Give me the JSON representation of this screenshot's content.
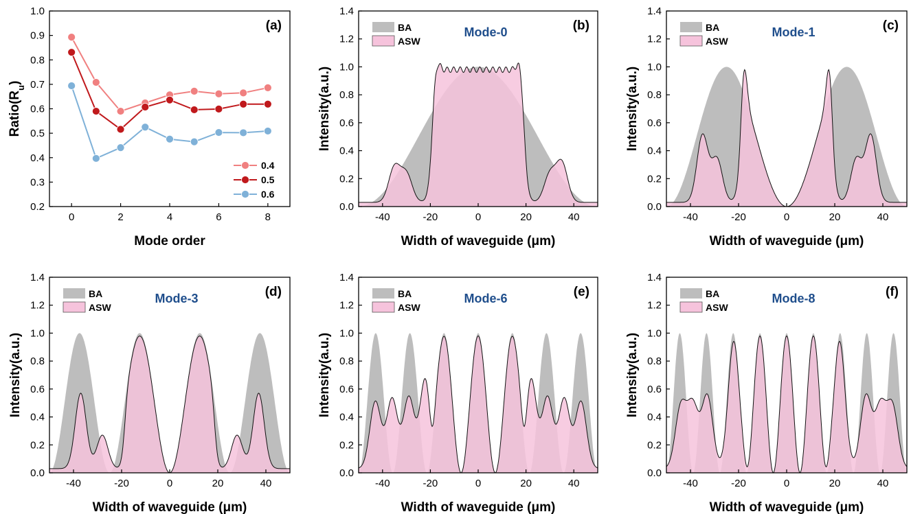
{
  "chart_data": [
    {
      "type": "line",
      "panel_label": "(a)",
      "xlabel": "Mode order",
      "ylabel": "Ratio(R",
      "ylabel_sub": "u",
      "ylabel_close": ")",
      "xlim": [
        -0.9,
        8.9
      ],
      "ylim": [
        0.2,
        1.0
      ],
      "xticks": [
        0,
        2,
        4,
        6,
        8
      ],
      "yticks": [
        0.2,
        0.3,
        0.4,
        0.5,
        0.6,
        0.7,
        0.8,
        0.9,
        1.0
      ],
      "ytick_labels": [
        "0.2",
        "0.3",
        "0.4",
        "0.5",
        "0.6",
        "0.7",
        "0.8",
        "0.9",
        "1.0"
      ],
      "x": [
        0,
        1,
        2,
        3,
        4,
        5,
        6,
        7,
        8
      ],
      "legend_position": "bottom-right",
      "series": [
        {
          "name": "0.4",
          "color": "#f08080",
          "values": [
            0.893,
            0.708,
            0.59,
            0.624,
            0.657,
            0.672,
            0.661,
            0.665,
            0.686
          ]
        },
        {
          "name": "0.5",
          "color": "#c0191c",
          "values": [
            0.831,
            0.59,
            0.516,
            0.607,
            0.636,
            0.596,
            0.599,
            0.619,
            0.619
          ]
        },
        {
          "name": "0.6",
          "color": "#7fb1d8",
          "values": [
            0.694,
            0.397,
            0.441,
            0.525,
            0.476,
            0.465,
            0.503,
            0.502,
            0.509
          ]
        }
      ]
    },
    {
      "type": "area",
      "panel_label": "(b)",
      "mode_label": "Mode-0",
      "mode_order": 0,
      "xlabel": "Width of waveguide (μm)",
      "ylabel": "Intensity(a.u.)",
      "xlim": [
        -50,
        50
      ],
      "ylim": [
        0,
        1.4
      ],
      "xticks": [
        -40,
        -20,
        0,
        20,
        40
      ],
      "yticks": [
        "0.0",
        "0.2",
        "0.4",
        "0.6",
        "0.8",
        "1.0",
        "1.2",
        "1.4"
      ],
      "series": [
        {
          "name": "BA",
          "color": "#bdbdbd"
        },
        {
          "name": "ASW",
          "color": "#f6c3dc"
        }
      ],
      "core_half_width": 19,
      "edge_peak": 1.05,
      "center_level": 0.98,
      "outer_peaks": [
        [
          -35,
          0.25
        ],
        [
          -30,
          0.2
        ],
        [
          35,
          0.28
        ],
        [
          30,
          0.2
        ]
      ]
    },
    {
      "type": "area",
      "panel_label": "(c)",
      "mode_label": "Mode-1",
      "mode_order": 1,
      "xlabel": "Width of waveguide (μm)",
      "ylabel": "Intensity(a.u.)",
      "xlim": [
        -50,
        50
      ],
      "ylim": [
        0,
        1.4
      ],
      "xticks": [
        -40,
        -20,
        0,
        20,
        40
      ],
      "yticks": [
        "0.0",
        "0.2",
        "0.4",
        "0.6",
        "0.8",
        "1.0",
        "1.2",
        "1.4"
      ],
      "series": [
        {
          "name": "BA",
          "color": "#bdbdbd"
        },
        {
          "name": "ASW",
          "color": "#f6c3dc"
        }
      ],
      "core_half_width": 19,
      "edge_peak": 1.27,
      "outer_peaks": [
        [
          -35,
          0.48
        ],
        [
          -29,
          0.31
        ],
        [
          35,
          0.48
        ],
        [
          29,
          0.31
        ]
      ]
    },
    {
      "type": "area",
      "panel_label": "(d)",
      "mode_label": "Mode-3",
      "mode_order": 3,
      "xlabel": "Width of waveguide (μm)",
      "ylabel": "Intensity(a.u.)",
      "xlim": [
        -50,
        50
      ],
      "ylim": [
        0,
        1.4
      ],
      "xticks": [
        -40,
        -20,
        0,
        20,
        40
      ],
      "yticks": [
        "0.0",
        "0.2",
        "0.4",
        "0.6",
        "0.8",
        "1.0",
        "1.2",
        "1.4"
      ],
      "series": [
        {
          "name": "BA",
          "color": "#bdbdbd"
        },
        {
          "name": "ASW",
          "color": "#f6c3dc"
        }
      ],
      "core_half_width": 19,
      "edge_peak": 1.05,
      "outer_peaks": [
        [
          -37,
          0.54
        ],
        [
          37,
          0.54
        ],
        [
          -28,
          0.24
        ],
        [
          28,
          0.24
        ]
      ]
    },
    {
      "type": "area",
      "panel_label": "(e)",
      "mode_label": "Mode-6",
      "mode_order": 6,
      "xlabel": "Width of waveguide (μm)",
      "ylabel": "Intensity(a.u.)",
      "xlim": [
        -50,
        50
      ],
      "ylim": [
        0,
        1.4
      ],
      "xticks": [
        -40,
        -20,
        0,
        20,
        40
      ],
      "yticks": [
        "0.0",
        "0.2",
        "0.4",
        "0.6",
        "0.8",
        "1.0",
        "1.2",
        "1.4"
      ],
      "series": [
        {
          "name": "BA",
          "color": "#bdbdbd"
        },
        {
          "name": "ASW",
          "color": "#f6c3dc"
        }
      ],
      "core_half_width": 19,
      "edge_peak": 1.08,
      "outer_peaks": [
        [
          -43,
          0.48
        ],
        [
          -29,
          0.51
        ],
        [
          -22,
          0.66
        ],
        [
          22,
          0.66
        ],
        [
          29,
          0.51
        ],
        [
          43,
          0.48
        ],
        [
          -36,
          0.5
        ],
        [
          36,
          0.5
        ]
      ]
    },
    {
      "type": "area",
      "panel_label": "(f)",
      "mode_label": "Mode-8",
      "mode_order": 8,
      "xlabel": "Width of waveguide (μm)",
      "ylabel": "Intensity(a.u.)",
      "xlim": [
        -50,
        50
      ],
      "ylim": [
        0,
        1.4
      ],
      "xticks": [
        -40,
        -20,
        0,
        20,
        40
      ],
      "yticks": [
        "0.0",
        "0.2",
        "0.4",
        "0.6",
        "0.8",
        "1.0",
        "1.2",
        "1.4"
      ],
      "series": [
        {
          "name": "BA",
          "color": "#bdbdbd"
        },
        {
          "name": "ASW",
          "color": "#f6c3dc"
        }
      ],
      "core_half_width": 19,
      "edge_peak": 1.05,
      "outer_peaks": [
        [
          -44,
          0.44
        ],
        [
          -33,
          0.52
        ],
        [
          -22,
          0.91
        ],
        [
          22,
          0.91
        ],
        [
          33,
          0.52
        ],
        [
          44,
          0.44
        ],
        [
          -39,
          0.44
        ],
        [
          39,
          0.44
        ]
      ]
    }
  ]
}
